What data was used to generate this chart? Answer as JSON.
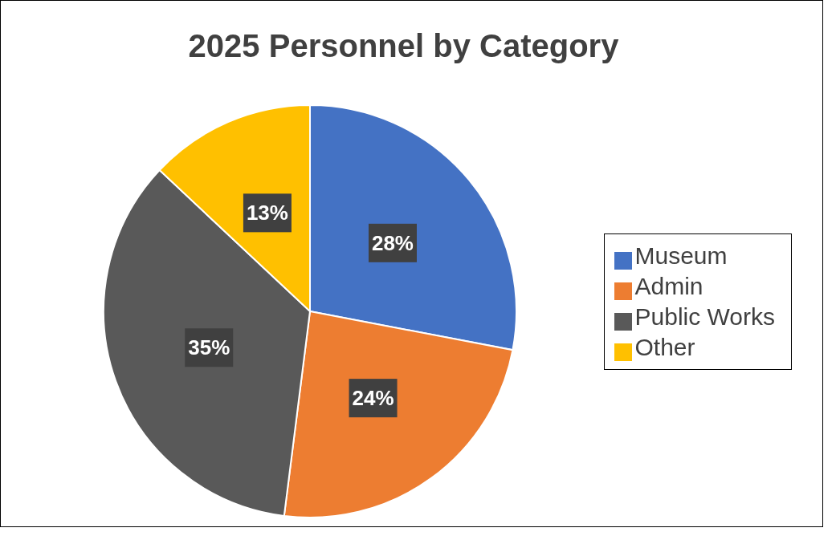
{
  "chart_data": {
    "type": "pie",
    "title": "2025 Personnel by Category",
    "categories": [
      "Museum",
      "Admin",
      "Public Works",
      "Other"
    ],
    "values": [
      28,
      24,
      35,
      13
    ],
    "colors": [
      "#4472c4",
      "#ed7d31",
      "#595959",
      "#ffc000"
    ],
    "value_labels": [
      "28%",
      "24%",
      "35%",
      "13%"
    ],
    "legend": "right"
  }
}
